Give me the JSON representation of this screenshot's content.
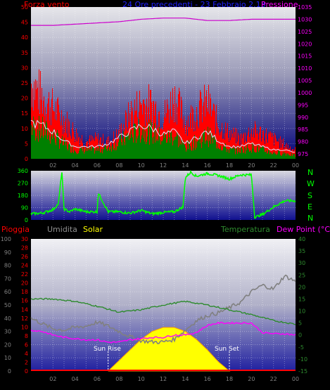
{
  "header": {
    "left_label": "Forza vento",
    "center_label": "24 Ore precedenti - 23 Febbraio 2.13",
    "right_label": "Pressione"
  },
  "panel2": {
    "right_letters": [
      "N",
      "W",
      "S",
      "E",
      "N"
    ]
  },
  "panel3": {
    "labels": {
      "rain": "Pioggia",
      "humidity": "Umidita",
      "solar": "Solar",
      "temperature": "Temperatura",
      "dew": "Dew Point (°C)"
    },
    "sun_rise": "Sun Rise",
    "sun_set": "Sun Set"
  },
  "colors": {
    "wind_gust": "#ff0000",
    "wind_avg": "#008000",
    "wind_line": "#e0e0ff",
    "pressure": "#cc00cc",
    "direction": "#00ff00",
    "humidity": "#808080",
    "temperature": "#2e8b2e",
    "dew": "#ff00ff",
    "solar": "#ffff00",
    "rain": "#ff0000"
  },
  "chart_data": [
    {
      "type": "area",
      "x_ticks": [
        "02",
        "04",
        "06",
        "08",
        "10",
        "12",
        "14",
        "16",
        "18",
        "20",
        "22",
        "00"
      ],
      "y_left_ticks": [
        0,
        5,
        10,
        15,
        20,
        25,
        30,
        35,
        40,
        45,
        50
      ],
      "ylim_left": [
        0,
        50
      ],
      "y_right_ticks": [
        975,
        980,
        985,
        990,
        995,
        1000,
        1005,
        1010,
        1015,
        1020,
        1025,
        1030,
        1035
      ],
      "ylim_right": [
        973,
        1035
      ],
      "series": [
        {
          "name": "Forza vento",
          "hours": [
            0,
            1,
            2,
            3,
            4,
            5,
            6,
            7,
            8,
            9,
            10,
            11,
            12,
            13,
            14,
            15,
            16,
            17,
            18,
            19,
            20,
            21,
            22,
            23,
            24
          ],
          "gust": [
            27,
            22,
            18,
            14,
            9,
            6,
            7,
            6,
            9,
            16,
            20,
            19,
            15,
            22,
            13,
            17,
            20,
            12,
            9,
            7,
            10,
            9,
            7,
            5,
            3
          ],
          "avg": [
            11,
            10,
            8,
            5,
            3,
            3,
            3,
            4,
            6,
            8,
            10,
            9,
            7,
            8,
            4,
            6,
            8,
            5,
            3,
            3,
            4,
            3,
            2,
            2,
            1
          ]
        },
        {
          "name": "Pressione",
          "hours": [
            0,
            2,
            4,
            6,
            8,
            10,
            12,
            14,
            16,
            18,
            20,
            22,
            24
          ],
          "values": [
            1027.5,
            1027.5,
            1028,
            1028.5,
            1029,
            1030,
            1030.5,
            1030.5,
            1029.5,
            1029.5,
            1030,
            1030,
            1030
          ]
        }
      ]
    },
    {
      "type": "line",
      "y_left_ticks": [
        0,
        90,
        180,
        270,
        360
      ],
      "ylim": [
        0,
        360
      ],
      "series": [
        {
          "name": "direction",
          "hours": [
            0,
            1,
            2,
            2.5,
            2.8,
            3,
            3.5,
            4,
            5,
            6,
            6.1,
            7,
            8,
            9,
            10,
            11,
            12,
            13,
            13.8,
            14,
            14.5,
            15,
            16,
            17,
            18,
            19,
            20,
            20.3,
            21,
            22,
            23,
            24
          ],
          "values": [
            45,
            50,
            75,
            120,
            360,
            80,
            60,
            80,
            60,
            60,
            200,
            60,
            60,
            50,
            70,
            45,
            55,
            60,
            95,
            310,
            350,
            320,
            340,
            325,
            300,
            330,
            330,
            20,
            40,
            95,
            140,
            140
          ]
        }
      ]
    },
    {
      "type": "line",
      "y_left_ticks": [
        0,
        10,
        20,
        30,
        40,
        50,
        60,
        70,
        80,
        90,
        100
      ],
      "y_left2_ticks": [
        0,
        2,
        4,
        6,
        8,
        10,
        12,
        14,
        16,
        18,
        20,
        22,
        24,
        26,
        28,
        30
      ],
      "y_right_ticks": [
        -15,
        -10,
        -5,
        0,
        5,
        10,
        15,
        20,
        25,
        30,
        35,
        40
      ],
      "ylim_humidity": [
        0,
        100
      ],
      "ylim_temperature": [
        -15,
        40
      ],
      "series": [
        {
          "name": "Umidita",
          "hours": [
            0,
            1,
            2,
            3,
            4,
            5,
            6,
            7,
            8,
            9,
            10,
            11,
            12,
            13,
            14,
            15,
            16,
            17,
            18,
            19,
            20,
            21,
            22,
            23,
            24
          ],
          "values": [
            40,
            36,
            32,
            31,
            33,
            34,
            37,
            34,
            30,
            26,
            23,
            22,
            22,
            24,
            31,
            38,
            42,
            44,
            48,
            52,
            60,
            65,
            62,
            72,
            68
          ]
        },
        {
          "name": "Temperatura",
          "hours": [
            0,
            2,
            4,
            6,
            8,
            10,
            12,
            14,
            16,
            18,
            20,
            22,
            24
          ],
          "values": [
            15,
            15,
            14,
            12,
            9.5,
            10.5,
            12.5,
            14,
            12.5,
            10.5,
            8.5,
            6,
            4.5
          ]
        },
        {
          "name": "Dew Point",
          "hours": [
            0,
            1,
            2,
            3,
            4,
            5,
            6,
            7,
            8,
            9,
            10,
            11,
            12,
            13,
            14,
            15,
            16,
            17,
            18,
            19,
            20,
            21,
            22,
            23,
            24
          ],
          "values": [
            2,
            1.5,
            0,
            -1,
            -1.5,
            -2,
            -2,
            -3,
            -3,
            -2,
            -1.5,
            -1,
            -1,
            0,
            0,
            1,
            4,
            5,
            5,
            5,
            5,
            1,
            0.5,
            0.5,
            0
          ]
        },
        {
          "name": "Solar",
          "hours": [
            7,
            8,
            9,
            10,
            11,
            12,
            13,
            14,
            15,
            16,
            17,
            18
          ],
          "values": [
            0,
            8,
            16,
            24,
            30,
            33,
            33,
            30,
            24,
            16,
            7,
            0
          ]
        },
        {
          "name": "Pioggia",
          "hours": [
            0,
            24
          ],
          "values": [
            0,
            0
          ]
        }
      ]
    }
  ]
}
